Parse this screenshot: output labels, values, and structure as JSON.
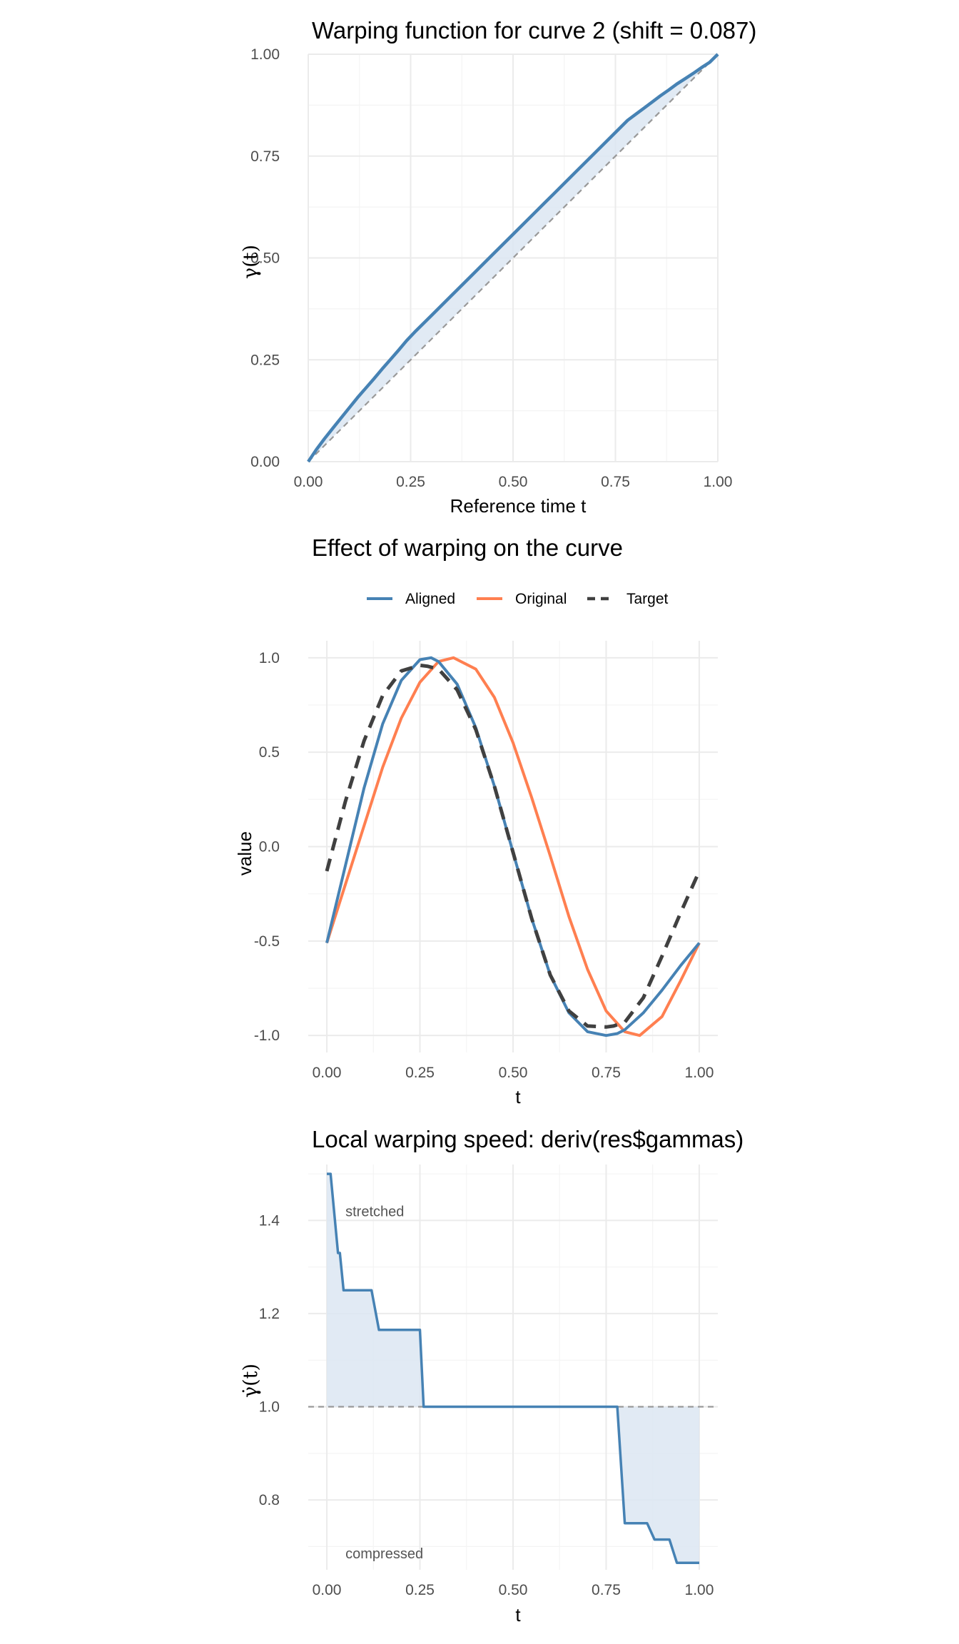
{
  "colors": {
    "aligned": "#4682B4",
    "original": "#FF7F50",
    "target": "#404040",
    "fill": "#DCE6F2",
    "grid_major": "#EBEBEB",
    "grid_minor": "#F4F4F4",
    "reference_line": "#999999"
  },
  "chart_data": [
    {
      "type": "line",
      "title": "Warping function for curve 2 (shift = 0.087)",
      "xlabel": "Reference time t",
      "ylabel": "γ(t)",
      "xlim": [
        0,
        1
      ],
      "ylim": [
        0,
        1
      ],
      "x_ticks": [
        "0.00",
        "0.25",
        "0.50",
        "0.75",
        "1.00"
      ],
      "y_ticks": [
        "0.00",
        "0.25",
        "0.50",
        "0.75",
        "1.00"
      ],
      "grid": true,
      "series": [
        {
          "role": "warp",
          "x": [
            0,
            0.02,
            0.04,
            0.06,
            0.08,
            0.1,
            0.12,
            0.14,
            0.16,
            0.18,
            0.2,
            0.22,
            0.24,
            0.26,
            0.3,
            0.35,
            0.4,
            0.45,
            0.5,
            0.55,
            0.6,
            0.65,
            0.7,
            0.75,
            0.78,
            0.8,
            0.82,
            0.84,
            0.86,
            0.88,
            0.9,
            0.92,
            0.94,
            0.96,
            0.98,
            1.0
          ],
          "y": [
            0,
            0.03,
            0.057,
            0.082,
            0.107,
            0.132,
            0.157,
            0.18,
            0.203,
            0.227,
            0.25,
            0.273,
            0.297,
            0.318,
            0.358,
            0.408,
            0.458,
            0.508,
            0.558,
            0.608,
            0.658,
            0.708,
            0.758,
            0.808,
            0.838,
            0.853,
            0.868,
            0.883,
            0.898,
            0.912,
            0.927,
            0.94,
            0.953,
            0.967,
            0.98,
            1.0
          ]
        },
        {
          "role": "identity",
          "x": [
            0,
            1
          ],
          "y": [
            0,
            1
          ]
        }
      ]
    },
    {
      "type": "line",
      "title": "Effect of warping on the curve",
      "xlabel": "t",
      "ylabel": "value",
      "xlim": [
        0,
        1
      ],
      "ylim": [
        -1,
        1
      ],
      "x_ticks": [
        "0.00",
        "0.25",
        "0.50",
        "0.75",
        "1.00"
      ],
      "y_ticks": [
        "-1.0",
        "-0.5",
        "0.0",
        "0.5",
        "1.0"
      ],
      "grid": true,
      "legend_position": "top",
      "legend": [
        "Aligned",
        "Original",
        "Target"
      ],
      "series": [
        {
          "name": "Aligned",
          "x": [
            0,
            0.05,
            0.1,
            0.15,
            0.2,
            0.25,
            0.28,
            0.3,
            0.35,
            0.4,
            0.45,
            0.5,
            0.55,
            0.6,
            0.65,
            0.7,
            0.75,
            0.78,
            0.8,
            0.85,
            0.9,
            0.95,
            1.0
          ],
          "y": [
            -0.51,
            -0.1,
            0.31,
            0.65,
            0.88,
            0.99,
            1.0,
            0.98,
            0.86,
            0.63,
            0.32,
            -0.03,
            -0.38,
            -0.68,
            -0.88,
            -0.98,
            -1.0,
            -0.99,
            -0.97,
            -0.88,
            -0.76,
            -0.63,
            -0.51
          ]
        },
        {
          "name": "Original",
          "x": [
            0,
            0.05,
            0.1,
            0.15,
            0.2,
            0.25,
            0.3,
            0.34,
            0.4,
            0.45,
            0.5,
            0.55,
            0.6,
            0.65,
            0.7,
            0.75,
            0.8,
            0.84,
            0.9,
            0.95,
            1.0
          ],
          "y": [
            -0.51,
            -0.2,
            0.11,
            0.42,
            0.68,
            0.87,
            0.98,
            1.0,
            0.94,
            0.79,
            0.55,
            0.26,
            -0.05,
            -0.37,
            -0.65,
            -0.87,
            -0.98,
            -1.0,
            -0.9,
            -0.71,
            -0.51
          ]
        },
        {
          "name": "Target",
          "x": [
            0,
            0.05,
            0.1,
            0.15,
            0.2,
            0.25,
            0.27,
            0.3,
            0.35,
            0.4,
            0.45,
            0.5,
            0.55,
            0.6,
            0.65,
            0.7,
            0.75,
            0.77,
            0.8,
            0.85,
            0.9,
            0.95,
            1.0
          ],
          "y": [
            -0.13,
            0.24,
            0.56,
            0.8,
            0.93,
            0.96,
            0.955,
            0.94,
            0.83,
            0.62,
            0.32,
            -0.03,
            -0.38,
            -0.68,
            -0.87,
            -0.95,
            -0.955,
            -0.95,
            -0.93,
            -0.8,
            -0.58,
            -0.35,
            -0.13
          ]
        }
      ]
    },
    {
      "type": "line",
      "title": "Local warping speed: deriv(res$gammas)",
      "xlabel": "t",
      "ylabel": "γ̇(t)",
      "xlim": [
        0,
        1
      ],
      "ylim": [
        0.65,
        1.52
      ],
      "x_ticks": [
        "0.00",
        "0.25",
        "0.50",
        "0.75",
        "1.00"
      ],
      "y_ticks": [
        "0.8",
        "1.0",
        "1.2",
        "1.4"
      ],
      "grid": true,
      "reference_y": 1.0,
      "annotations": [
        {
          "text": "stretched",
          "x": 0.05,
          "y": 1.42
        },
        {
          "text": "compressed",
          "x": 0.05,
          "y": 0.685
        }
      ],
      "series": [
        {
          "role": "speed",
          "x": [
            0,
            0.01,
            0.03,
            0.035,
            0.045,
            0.06,
            0.12,
            0.14,
            0.25,
            0.26,
            0.27,
            0.78,
            0.8,
            0.86,
            0.88,
            0.92,
            0.94,
            1.0
          ],
          "y": [
            1.5,
            1.5,
            1.33,
            1.33,
            1.25,
            1.25,
            1.25,
            1.165,
            1.165,
            1.0,
            1.0,
            1.0,
            0.75,
            0.75,
            0.715,
            0.715,
            0.665,
            0.665
          ]
        }
      ]
    }
  ]
}
